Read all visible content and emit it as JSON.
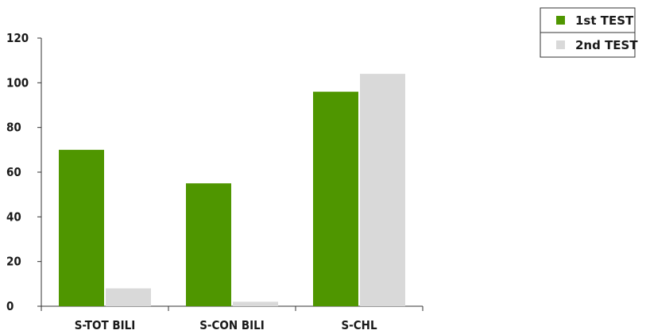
{
  "chart_data": {
    "type": "bar",
    "categories": [
      "S-TOT BILI",
      "S-CON BILI",
      "S-CHL"
    ],
    "series": [
      {
        "name": "1st TEST",
        "color": "#4f9600",
        "values": [
          70,
          55,
          96
        ]
      },
      {
        "name": "2nd TEST",
        "color": "#d9d9d9",
        "values": [
          8,
          2,
          104
        ]
      }
    ],
    "ylim": [
      0,
      120
    ],
    "yticks": [
      0,
      20,
      40,
      60,
      80,
      100,
      120
    ],
    "grid": false,
    "legend_position": "top-right"
  }
}
